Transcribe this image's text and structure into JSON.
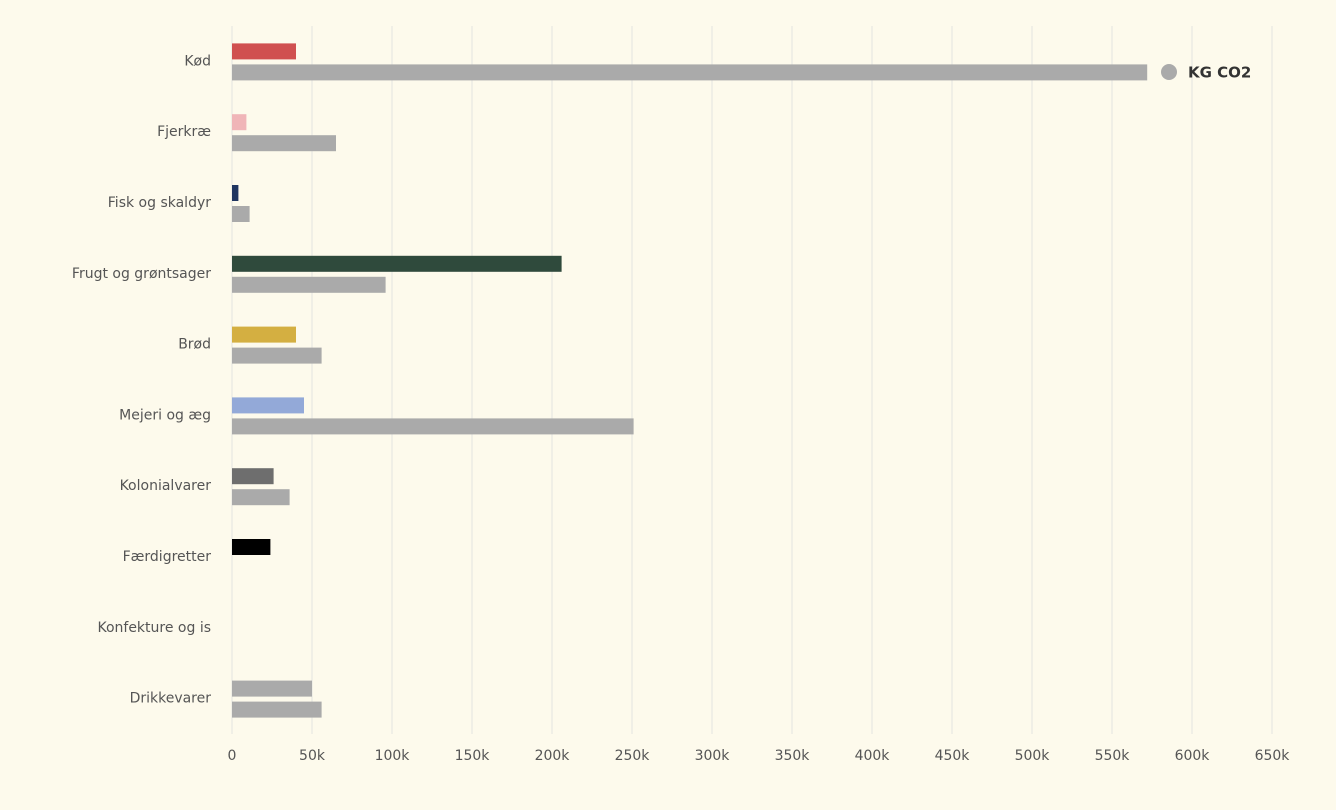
{
  "chart_data": {
    "type": "bar",
    "orientation": "horizontal",
    "categories": [
      "Kød",
      "Fjerkræ",
      "Fisk og skaldyr",
      "Frugt og grøntsager",
      "Brød",
      "Mejeri og æg",
      "Kolonialvarer",
      "Færdigretter",
      "Konfekture og is",
      "Drikkevarer"
    ],
    "series": [
      {
        "colors": [
          "#d05050",
          "#f0b5b8",
          "#1f3560",
          "#2f4a3c",
          "#d4af41",
          "#93a9d8",
          "#6e6e6e",
          "#000000",
          null,
          "#aaaaaa"
        ],
        "values": [
          40000,
          9000,
          4000,
          206000,
          40000,
          45000,
          26000,
          24000,
          null,
          50000
        ]
      },
      {
        "name": "KG CO2",
        "color": "#aaaaaa",
        "values": [
          572000,
          65000,
          11000,
          96000,
          56000,
          251000,
          36000,
          null,
          null,
          56000
        ]
      }
    ],
    "xlim": [
      0,
      650000
    ],
    "xticks": [
      0,
      {
        "value": 50000,
        "label": "50k"
      },
      {
        "value": 100000,
        "label": "100k"
      },
      {
        "value": 150000,
        "label": "150k"
      },
      {
        "value": 200000,
        "label": "200k"
      },
      {
        "value": 250000,
        "label": "250k"
      },
      {
        "value": 300000,
        "label": "300k"
      },
      {
        "value": 350000,
        "label": "350k"
      },
      {
        "value": 400000,
        "label": "400k"
      },
      {
        "value": 450000,
        "label": "450k"
      },
      {
        "value": 500000,
        "label": "500k"
      },
      {
        "value": 550000,
        "label": "550k"
      },
      {
        "value": 600000,
        "label": "600k"
      },
      {
        "value": 650000,
        "label": "650k"
      }
    ],
    "grid": true,
    "legend": "top-right"
  }
}
